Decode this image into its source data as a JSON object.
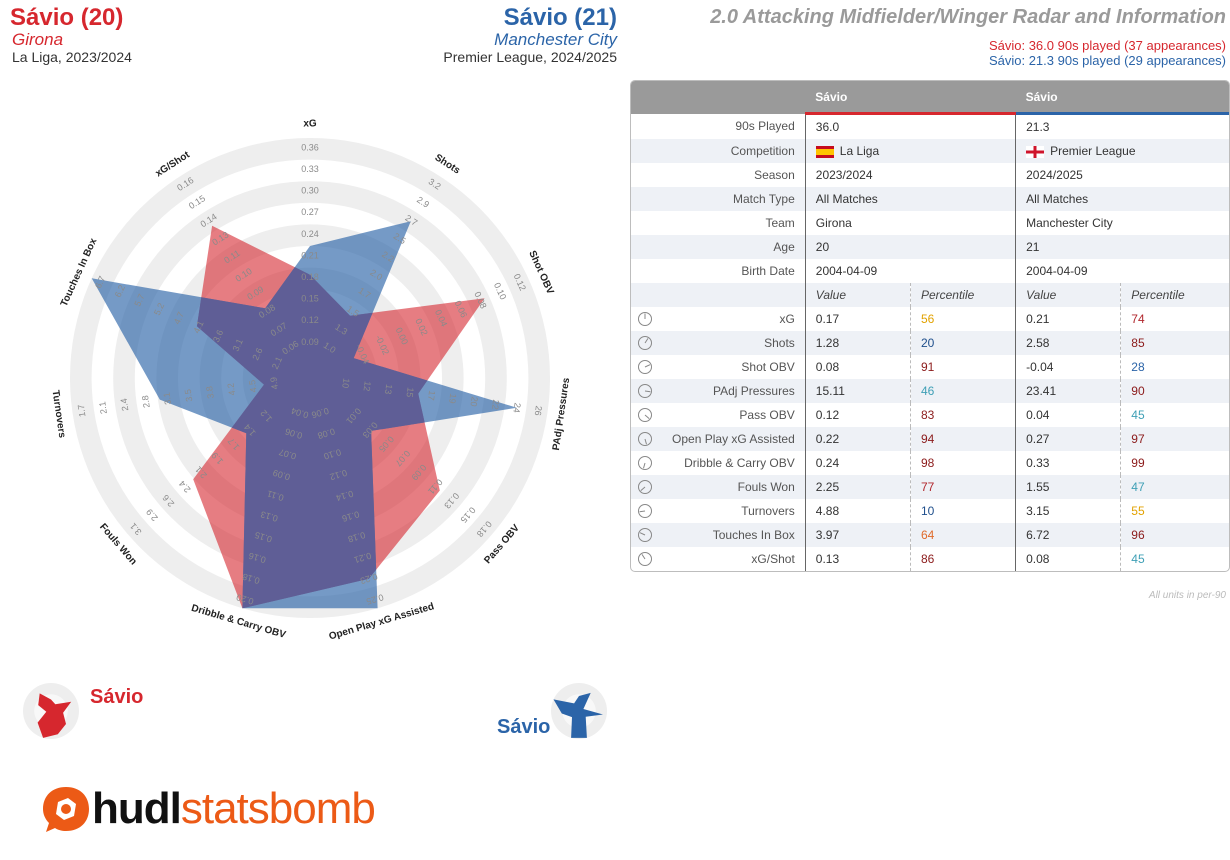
{
  "header": {
    "p1_name": "Sávio (20)",
    "p1_team": "Girona",
    "p1_league": "La Liga, 2023/2024",
    "p2_name": "Sávio (21)",
    "p2_team": "Manchester City",
    "p2_league": "Premier League, 2024/2025",
    "title": "2.0 Attacking Midfielder/Winger Radar and Information",
    "sub1": "Sávio: 36.0 90s played (37 appearances)",
    "sub2": "Sávio: 21.3 90s played (29 appearances)"
  },
  "colors": {
    "p1": "#d6272e",
    "p2": "#2b64a8",
    "overlap": "#5f5e96"
  },
  "chart_data": {
    "type": "radar",
    "axes": [
      {
        "name": "xG",
        "ticks": [
          "0.09",
          "0.12",
          "0.15",
          "0.18",
          "0.21",
          "0.24",
          "0.27",
          "0.30",
          "0.33",
          "0.36"
        ],
        "p1": 0.17,
        "p2": 0.21,
        "min": 0.06,
        "max": 0.36
      },
      {
        "name": "Shots",
        "ticks": [
          "1.0",
          "1.3",
          "1.5",
          "1.7",
          "2.0",
          "2.2",
          "2.5",
          "2.7",
          "2.9",
          "3.2"
        ],
        "p1": 1.28,
        "p2": 2.58,
        "min": 0.7,
        "max": 3.2
      },
      {
        "name": "Shot OBV",
        "ticks": [
          "-0.04",
          "-0.02",
          "0.00",
          "0.02",
          "0.04",
          "0.06",
          "0.08",
          "0.10",
          "0.12"
        ],
        "p1": 0.08,
        "p2": -0.04,
        "min": -0.06,
        "max": 0.12
      },
      {
        "name": "PAdj Pressures",
        "ticks": [
          "10",
          "12",
          "13",
          "15",
          "17",
          "19",
          "20",
          "22",
          "24",
          "26"
        ],
        "p1": 15.11,
        "p2": 23.41,
        "min": 8,
        "max": 26
      },
      {
        "name": "Pass OBV",
        "ticks": [
          "0.01",
          "0.03",
          "0.05",
          "0.07",
          "0.09",
          "0.11",
          "0.13",
          "0.15",
          "0.18"
        ],
        "p1": 0.12,
        "p2": 0.04,
        "min": -0.01,
        "max": 0.18
      },
      {
        "name": "Open Play xG Assisted",
        "ticks": [
          "0.06",
          "0.08",
          "0.10",
          "0.12",
          "0.14",
          "0.16",
          "0.18",
          "0.21",
          "0.23",
          "0.25"
        ],
        "p1": 0.22,
        "p2": 0.27,
        "min": 0.04,
        "max": 0.25
      },
      {
        "name": "Dribble & Carry OBV",
        "ticks": [
          "0.04",
          "0.06",
          "0.07",
          "0.09",
          "0.11",
          "0.13",
          "0.15",
          "0.16",
          "0.18",
          "0.20"
        ],
        "p1": 0.24,
        "p2": 0.33,
        "min": 0.02,
        "max": 0.2
      },
      {
        "name": "Fouls Won",
        "ticks": [
          "1.2",
          "1.4",
          "1.7",
          "1.9",
          "2.1",
          "2.4",
          "2.6",
          "2.9",
          "3.1"
        ],
        "p1": 2.25,
        "p2": 1.55,
        "min": 0.95,
        "max": 3.1
      },
      {
        "name": "Turnovers",
        "ticks": [
          "4.9",
          "4.5",
          "4.2",
          "3.8",
          "3.5",
          "3.1",
          "2.8",
          "2.4",
          "2.1",
          "1.7"
        ],
        "p1": 4.88,
        "p2": 3.15,
        "min": 5.25,
        "max": 1.7
      },
      {
        "name": "Touches In Box",
        "ticks": [
          "2.1",
          "2.6",
          "3.1",
          "3.6",
          "4.1",
          "4.7",
          "5.2",
          "5.7",
          "6.2",
          "6.7"
        ],
        "p1": 3.97,
        "p2": 6.72,
        "min": 1.6,
        "max": 6.7
      },
      {
        "name": "xG/Shot",
        "ticks": [
          "0.06",
          "0.07",
          "0.08",
          "0.09",
          "0.10",
          "0.11",
          "0.13",
          "0.14",
          "0.15",
          "0.16"
        ],
        "p1": 0.13,
        "p2": 0.08,
        "min": 0.05,
        "max": 0.16
      }
    ]
  },
  "table": {
    "col_p1": "Sávio",
    "col_p2": "Sávio",
    "info_rows": [
      {
        "label": "90s Played",
        "p1": "36.0",
        "p2": "21.3"
      },
      {
        "label": "Competition",
        "p1": "La Liga",
        "p2": "Premier League",
        "flags": true
      },
      {
        "label": "Season",
        "p1": "2023/2024",
        "p2": "2024/2025"
      },
      {
        "label": "Match Type",
        "p1": "All Matches",
        "p2": "All Matches"
      },
      {
        "label": "Team",
        "p1": "Girona",
        "p2": "Manchester City"
      },
      {
        "label": "Age",
        "p1": "20",
        "p2": "21"
      },
      {
        "label": "Birth Date",
        "p1": "2004-04-09",
        "p2": "2004-04-09"
      }
    ],
    "sub_value": "Value",
    "sub_pct": "Percentile",
    "stat_rows": [
      {
        "label": "xG",
        "v1": "0.17",
        "p1": "56",
        "c1": "#e2a200",
        "v2": "0.21",
        "p2": "74",
        "c2": "#b1262c"
      },
      {
        "label": "Shots",
        "v1": "1.28",
        "p1": "20",
        "c1": "#1f4f8c",
        "v2": "2.58",
        "p2": "85",
        "c2": "#8b1a1a"
      },
      {
        "label": "Shot OBV",
        "v1": "0.08",
        "p1": "91",
        "c1": "#8b1a1a",
        "v2": "-0.04",
        "p2": "28",
        "c2": "#2b64a8"
      },
      {
        "label": "PAdj Pressures",
        "v1": "15.11",
        "p1": "46",
        "c1": "#3fa0b6",
        "v2": "23.41",
        "p2": "90",
        "c2": "#8b1a1a"
      },
      {
        "label": "Pass OBV",
        "v1": "0.12",
        "p1": "83",
        "c1": "#8b1a1a",
        "v2": "0.04",
        "p2": "45",
        "c2": "#3fa0b6"
      },
      {
        "label": "Open Play xG Assisted",
        "v1": "0.22",
        "p1": "94",
        "c1": "#8b1a1a",
        "v2": "0.27",
        "p2": "97",
        "c2": "#8b1a1a"
      },
      {
        "label": "Dribble & Carry OBV",
        "v1": "0.24",
        "p1": "98",
        "c1": "#8b1a1a",
        "v2": "0.33",
        "p2": "99",
        "c2": "#8b1a1a"
      },
      {
        "label": "Fouls Won",
        "v1": "2.25",
        "p1": "77",
        "c1": "#b1262c",
        "v2": "1.55",
        "p2": "47",
        "c2": "#3fa0b6"
      },
      {
        "label": "Turnovers",
        "v1": "4.88",
        "p1": "10",
        "c1": "#1f4f8c",
        "v2": "3.15",
        "p2": "55",
        "c2": "#e2a200"
      },
      {
        "label": "Touches In Box",
        "v1": "3.97",
        "p1": "64",
        "c1": "#e06a2a",
        "v2": "6.72",
        "p2": "96",
        "c2": "#8b1a1a"
      },
      {
        "label": "xG/Shot",
        "v1": "0.13",
        "p1": "86",
        "c1": "#8b1a1a",
        "v2": "0.08",
        "p2": "45",
        "c2": "#3fa0b6"
      }
    ],
    "units_note": "All units in per-90"
  },
  "legend": {
    "p1_label": "Sávio",
    "p2_label": "Sávio"
  },
  "logo": {
    "part1": "hudl",
    "part2": "statsbomb"
  }
}
